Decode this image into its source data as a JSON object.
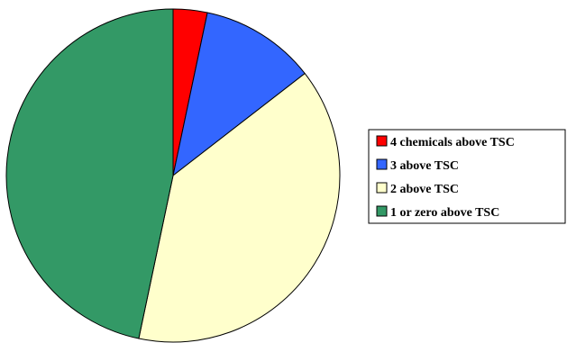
{
  "chart_data": {
    "type": "pie",
    "title": "",
    "categories": [
      "4 chemicals above TSC",
      "3 above TSC",
      "2 above TSC",
      "1 or zero above TSC"
    ],
    "values": [
      3.3,
      11.2,
      38.8,
      46.7
    ],
    "colors": [
      "#FF0000",
      "#3366FF",
      "#FFFFCC",
      "#339966"
    ],
    "start_angle_deg": 0,
    "direction": "clockwise",
    "legend": {
      "position": "right",
      "entries": [
        "4 chemicals above TSC",
        "3 above TSC",
        "2 above TSC",
        "1 or zero above TSC"
      ]
    }
  }
}
